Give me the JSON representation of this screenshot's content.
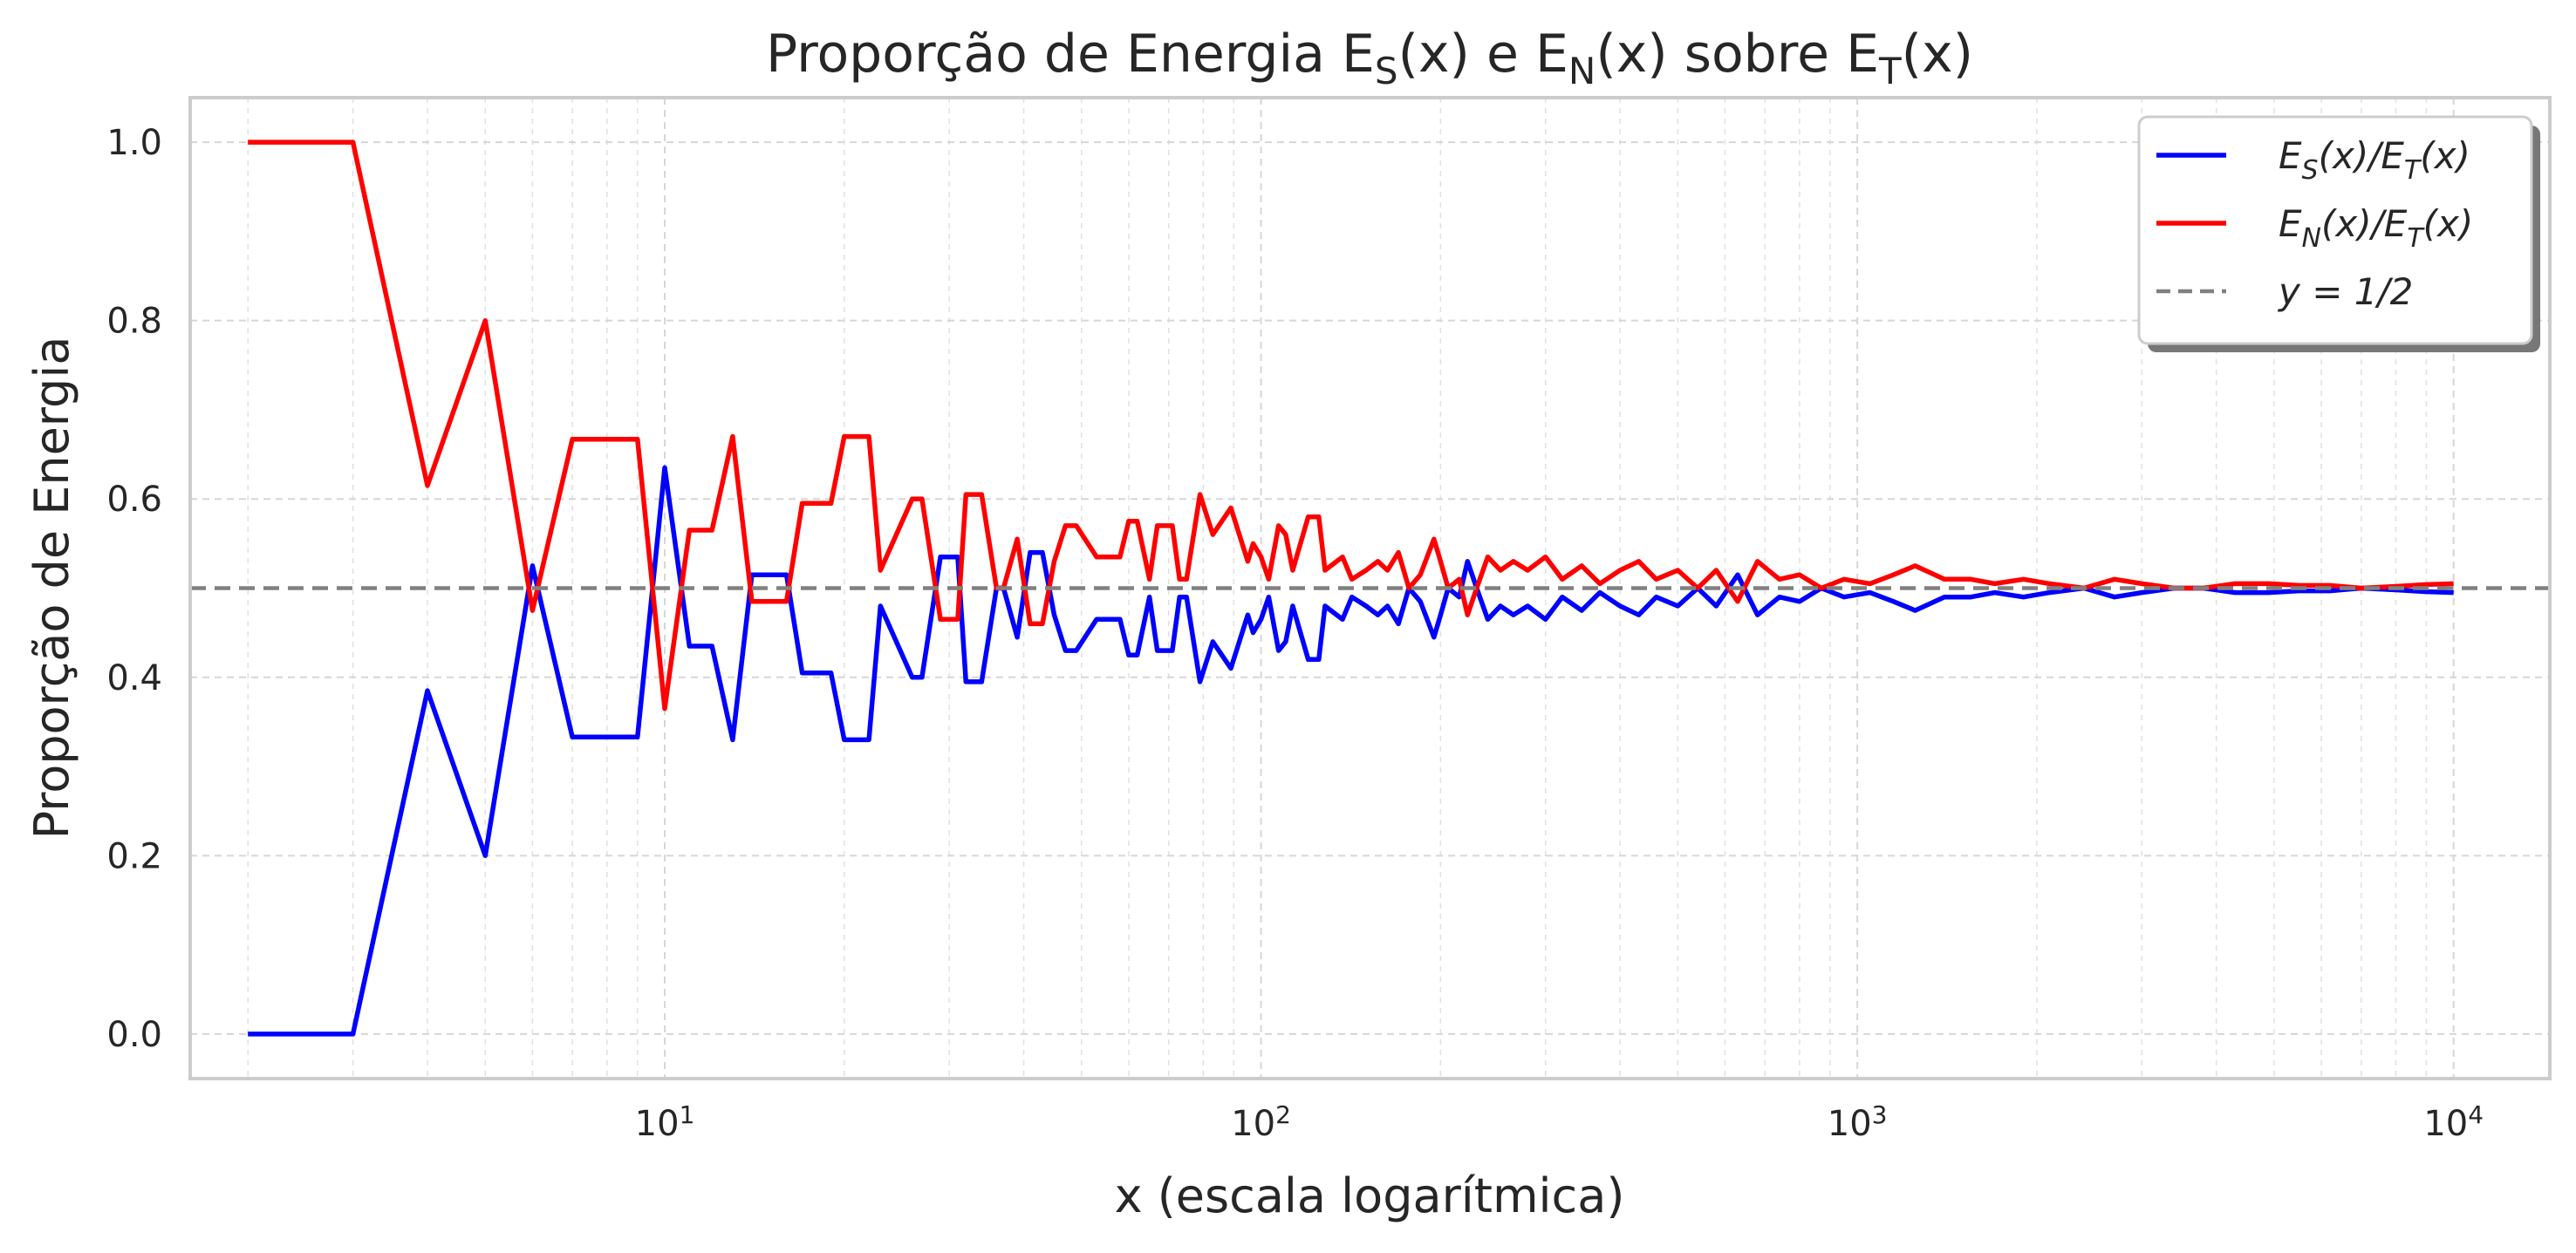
{
  "chart_data": {
    "type": "line",
    "title": "Proporção de Energia E_S(x) e E_N(x) sobre E_T(x)",
    "xlabel": "x (escala logarítmica)",
    "ylabel": "Proporção de Energia",
    "xscale": "log",
    "xlim": [
      1.6,
      14500
    ],
    "ylim": [
      -0.05,
      1.05
    ],
    "xticks": [
      10,
      100,
      1000,
      10000
    ],
    "xtick_labels": [
      "10^1",
      "10^2",
      "10^3",
      "10^4"
    ],
    "yticks": [
      0.0,
      0.2,
      0.4,
      0.6,
      0.8,
      1.0
    ],
    "ytick_labels": [
      "0.0",
      "0.2",
      "0.4",
      "0.6",
      "0.8",
      "1.0"
    ],
    "grid": true,
    "legend_position": "top-right",
    "series": [
      {
        "name": "E_S(x)/E_T(x)",
        "color": "#0000ff",
        "x": [
          2,
          3,
          4,
          5,
          6,
          7,
          8,
          9,
          10,
          11,
          12,
          13,
          14,
          16,
          17,
          19,
          20,
          22,
          23,
          26,
          27,
          29,
          31,
          32,
          34,
          36,
          37,
          39,
          41,
          43,
          45,
          47,
          49,
          53,
          58,
          60,
          62,
          65,
          67,
          71,
          73,
          75,
          79,
          83,
          89,
          95,
          97,
          100,
          103,
          107,
          110,
          113,
          120,
          125,
          128,
          137,
          142,
          150,
          157,
          163,
          170,
          177,
          185,
          195,
          200,
          206,
          215,
          222,
          230,
          240,
          252,
          265,
          280,
          300,
          320,
          345,
          370,
          400,
          430,
          460,
          500,
          540,
          580,
          630,
          680,
          740,
          800,
          870,
          950,
          1050,
          1150,
          1250,
          1400,
          1550,
          1700,
          1900,
          2100,
          2400,
          2700,
          3000,
          3400,
          3800,
          4300,
          4900,
          5500,
          6200,
          7000,
          8000,
          9000,
          10000
        ],
        "y": [
          0.0,
          0.0,
          0.385,
          0.2,
          0.525,
          0.333,
          0.333,
          0.333,
          0.635,
          0.435,
          0.435,
          0.33,
          0.515,
          0.515,
          0.405,
          0.405,
          0.33,
          0.33,
          0.48,
          0.4,
          0.4,
          0.535,
          0.535,
          0.395,
          0.395,
          0.5,
          0.5,
          0.445,
          0.54,
          0.54,
          0.47,
          0.43,
          0.43,
          0.465,
          0.465,
          0.425,
          0.425,
          0.49,
          0.43,
          0.43,
          0.49,
          0.49,
          0.395,
          0.44,
          0.41,
          0.47,
          0.45,
          0.465,
          0.49,
          0.43,
          0.44,
          0.48,
          0.42,
          0.42,
          0.48,
          0.465,
          0.49,
          0.48,
          0.47,
          0.48,
          0.46,
          0.5,
          0.485,
          0.445,
          0.47,
          0.5,
          0.49,
          0.53,
          0.5,
          0.465,
          0.48,
          0.47,
          0.48,
          0.465,
          0.49,
          0.475,
          0.495,
          0.48,
          0.47,
          0.49,
          0.48,
          0.5,
          0.48,
          0.515,
          0.47,
          0.49,
          0.485,
          0.5,
          0.49,
          0.495,
          0.485,
          0.475,
          0.49,
          0.49,
          0.495,
          0.49,
          0.495,
          0.5,
          0.49,
          0.495,
          0.5,
          0.5,
          0.495,
          0.495,
          0.497,
          0.497,
          0.5,
          0.498,
          0.496,
          0.495
        ]
      },
      {
        "name": "E_N(x)/E_T(x)",
        "color": "#ff0000",
        "x": [
          2,
          3,
          4,
          5,
          6,
          7,
          8,
          9,
          10,
          11,
          12,
          13,
          14,
          16,
          17,
          19,
          20,
          22,
          23,
          26,
          27,
          29,
          31,
          32,
          34,
          36,
          37,
          39,
          41,
          43,
          45,
          47,
          49,
          53,
          58,
          60,
          62,
          65,
          67,
          71,
          73,
          75,
          79,
          83,
          89,
          95,
          97,
          100,
          103,
          107,
          110,
          113,
          120,
          125,
          128,
          137,
          142,
          150,
          157,
          163,
          170,
          177,
          185,
          195,
          200,
          206,
          215,
          222,
          230,
          240,
          252,
          265,
          280,
          300,
          320,
          345,
          370,
          400,
          430,
          460,
          500,
          540,
          580,
          630,
          680,
          740,
          800,
          870,
          950,
          1050,
          1150,
          1250,
          1400,
          1550,
          1700,
          1900,
          2100,
          2400,
          2700,
          3000,
          3400,
          3800,
          4300,
          4900,
          5500,
          6200,
          7000,
          8000,
          9000,
          10000
        ],
        "y": [
          1.0,
          1.0,
          0.615,
          0.8,
          0.475,
          0.667,
          0.667,
          0.667,
          0.365,
          0.565,
          0.565,
          0.67,
          0.485,
          0.485,
          0.595,
          0.595,
          0.67,
          0.67,
          0.52,
          0.6,
          0.6,
          0.465,
          0.465,
          0.605,
          0.605,
          0.5,
          0.5,
          0.555,
          0.46,
          0.46,
          0.53,
          0.57,
          0.57,
          0.535,
          0.535,
          0.575,
          0.575,
          0.51,
          0.57,
          0.57,
          0.51,
          0.51,
          0.605,
          0.56,
          0.59,
          0.53,
          0.55,
          0.535,
          0.51,
          0.57,
          0.56,
          0.52,
          0.58,
          0.58,
          0.52,
          0.535,
          0.51,
          0.52,
          0.53,
          0.52,
          0.54,
          0.5,
          0.515,
          0.555,
          0.53,
          0.5,
          0.51,
          0.47,
          0.5,
          0.535,
          0.52,
          0.53,
          0.52,
          0.535,
          0.51,
          0.525,
          0.505,
          0.52,
          0.53,
          0.51,
          0.52,
          0.5,
          0.52,
          0.485,
          0.53,
          0.51,
          0.515,
          0.5,
          0.51,
          0.505,
          0.515,
          0.525,
          0.51,
          0.51,
          0.505,
          0.51,
          0.505,
          0.5,
          0.51,
          0.505,
          0.5,
          0.5,
          0.505,
          0.505,
          0.503,
          0.503,
          0.5,
          0.502,
          0.504,
          0.505
        ]
      },
      {
        "name": "y = 1/2",
        "color": "#808080",
        "style": "dashed",
        "x": [
          1.6,
          14500
        ],
        "y": [
          0.5,
          0.5
        ]
      }
    ]
  },
  "legend": [
    {
      "label": "E_S(x)/E_T(x)",
      "color": "#0000ff",
      "style": "solid"
    },
    {
      "label": "E_N(x)/E_T(x)",
      "color": "#ff0000",
      "style": "solid"
    },
    {
      "label": "y = 1/2",
      "color": "#808080",
      "style": "dashed"
    }
  ],
  "colors": {
    "axes_frame": "#cccccc",
    "background": "#ffffff",
    "text": "#262626"
  }
}
